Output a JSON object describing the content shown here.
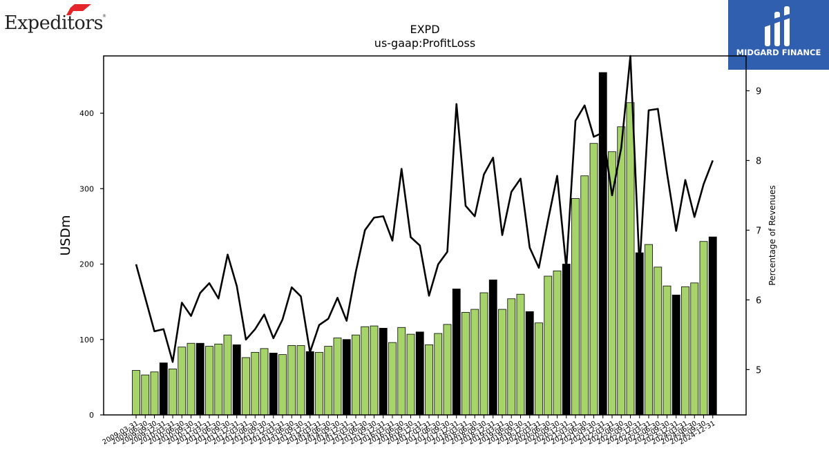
{
  "branding": {
    "company_logo_text": "Expeditors",
    "company_logo_mark": "®",
    "partner_logo_text": "MIDGARD FINANCE",
    "partner_logo_color": "#2f5fae",
    "accent_red": "#e4262a"
  },
  "chart_data": {
    "type": "bar",
    "title": "EXPD",
    "subtitle": "us-gaap:ProfitLoss",
    "ylabel": "USDm",
    "ylabel_right": "Percentage of Revenues",
    "ylim": [
      0,
      476
    ],
    "ylim_right": [
      4.35,
      9.5
    ],
    "yticks": [
      0,
      100,
      200,
      300,
      400
    ],
    "yticks_right": [
      5,
      6,
      7,
      8,
      9
    ],
    "colors": {
      "quarter": "#a6d46a",
      "annual": "#000000",
      "line": "#000000"
    },
    "legend": "none",
    "grid": false,
    "categories": [
      "2009-03-31",
      "2009-06-30",
      "2009-09-30",
      "2009-12-31",
      "2010-03-31",
      "2010-06-30",
      "2010-09-30",
      "2010-12-31",
      "2011-03-31",
      "2011-06-30",
      "2011-09-30",
      "2011-12-31",
      "2012-03-31",
      "2012-06-30",
      "2012-09-30",
      "2012-12-31",
      "2013-03-31",
      "2013-06-30",
      "2013-09-30",
      "2013-12-31",
      "2014-03-31",
      "2014-06-30",
      "2014-09-30",
      "2014-12-31",
      "2015-03-31",
      "2015-06-30",
      "2015-09-30",
      "2015-12-31",
      "2016-03-31",
      "2016-06-30",
      "2016-09-30",
      "2016-12-31",
      "2017-03-31",
      "2017-06-30",
      "2017-09-30",
      "2017-12-31",
      "2018-03-31",
      "2018-06-30",
      "2018-09-30",
      "2018-12-31",
      "2019-03-31",
      "2019-06-30",
      "2019-09-30",
      "2019-12-31",
      "2020-03-31",
      "2020-06-30",
      "2020-09-30",
      "2020-12-31",
      "2021-03-31",
      "2021-06-30",
      "2021-09-30",
      "2021-12-31",
      "2022-03-31",
      "2022-06-30",
      "2022-09-30",
      "2022-12-31",
      "2023-03-31",
      "2023-06-30",
      "2023-09-30",
      "2023-12-31",
      "2024-03-31",
      "2024-06-30",
      "2024-09-30",
      "2024-12-31"
    ],
    "series": [
      {
        "kind": "bar",
        "values": [
          59,
          53,
          57,
          69,
          61,
          90,
          95,
          95,
          91,
          94,
          106,
          93,
          76,
          83,
          88,
          82,
          80,
          92,
          92,
          84,
          83,
          91,
          102,
          100,
          106,
          117,
          118,
          115,
          96,
          116,
          107,
          110,
          93,
          108,
          120,
          167,
          136,
          140,
          162,
          179,
          140,
          154,
          160,
          137,
          122,
          184,
          191,
          200,
          287,
          317,
          360,
          454,
          349,
          382,
          414,
          215,
          226,
          196,
          171,
          159,
          170,
          175,
          230,
          236
        ]
      },
      {
        "kind": "line",
        "axis": "right",
        "values": [
          6.51,
          6.03,
          5.55,
          5.58,
          5.11,
          5.96,
          5.77,
          6.1,
          6.24,
          6.02,
          6.65,
          6.2,
          5.43,
          5.58,
          5.79,
          5.45,
          5.72,
          6.18,
          6.05,
          5.25,
          5.64,
          5.73,
          6.03,
          5.7,
          6.4,
          7.0,
          7.18,
          7.2,
          6.85,
          7.88,
          6.9,
          6.78,
          6.06,
          6.51,
          6.69,
          8.81,
          7.35,
          7.2,
          7.8,
          8.04,
          6.93,
          7.55,
          7.74,
          6.75,
          6.46,
          7.14,
          7.78,
          6.46,
          8.57,
          8.79,
          8.34,
          8.4,
          7.5,
          8.18,
          9.5,
          6.46,
          8.72,
          8.74,
          7.82,
          6.99,
          7.72,
          7.19,
          7.66,
          8.0
        ]
      }
    ]
  }
}
